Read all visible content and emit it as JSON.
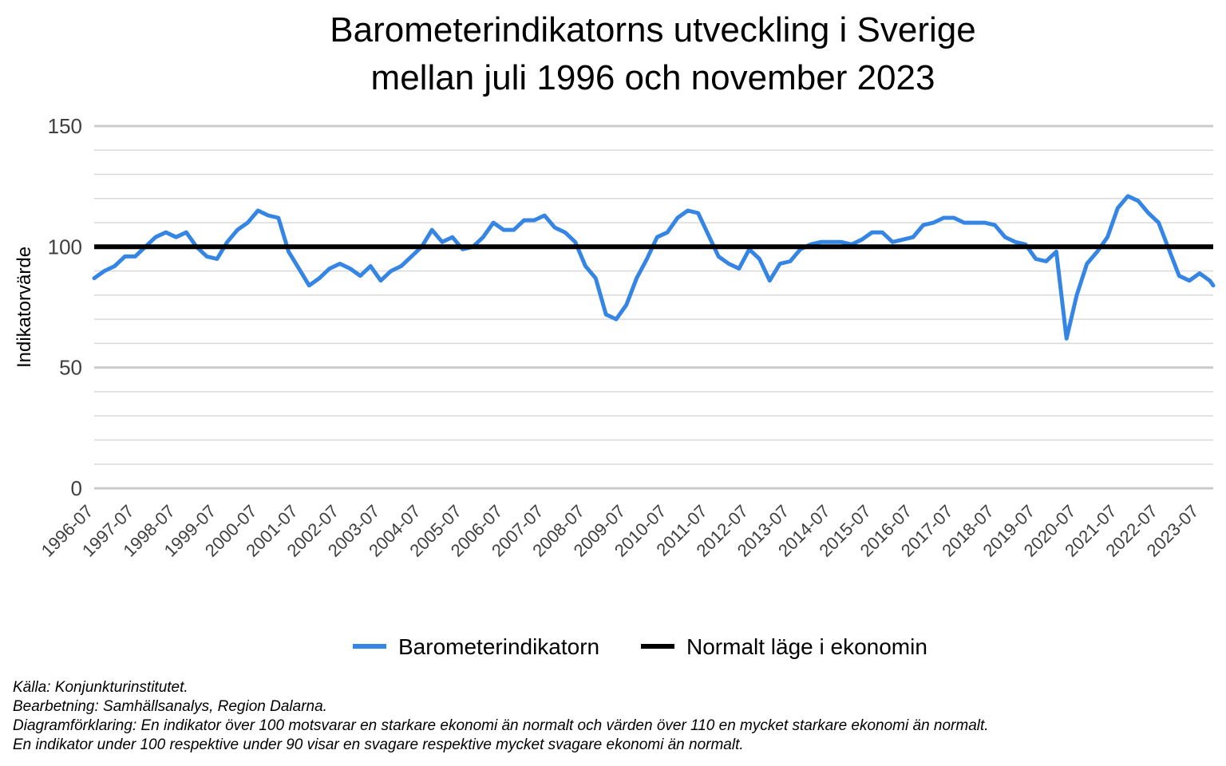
{
  "chart_data": {
    "type": "line",
    "title": [
      "Barometerindikatorns utveckling i Sverige",
      "mellan juli 1996 och november 2023"
    ],
    "ylabel": "Indikatorvärde",
    "xlabel": "",
    "ylim": [
      0,
      150
    ],
    "yticks": [
      0,
      50,
      100,
      150
    ],
    "grid": true,
    "legend_position": "bottom",
    "x_tick_labels": [
      "1996-07",
      "1997-07",
      "1998-07",
      "1999-07",
      "2000-07",
      "2001-07",
      "2002-07",
      "2003-07",
      "2004-07",
      "2005-07",
      "2006-07",
      "2007-07",
      "2008-07",
      "2009-07",
      "2010-07",
      "2011-07",
      "2012-07",
      "2013-07",
      "2014-07",
      "2015-07",
      "2016-07",
      "2017-07",
      "2018-07",
      "2019-07",
      "2020-07",
      "2021-07",
      "2022-07",
      "2023-07"
    ],
    "x_start": "1996-07",
    "x_end": "2023-11",
    "series": [
      {
        "name": "Barometerindikatorn",
        "color": "#3585e5",
        "points": [
          [
            "1996-07",
            87
          ],
          [
            "1996-10",
            90
          ],
          [
            "1997-01",
            92
          ],
          [
            "1997-04",
            96
          ],
          [
            "1997-07",
            96
          ],
          [
            "1997-10",
            100
          ],
          [
            "1998-01",
            104
          ],
          [
            "1998-04",
            106
          ],
          [
            "1998-07",
            104
          ],
          [
            "1998-10",
            106
          ],
          [
            "1999-01",
            100
          ],
          [
            "1999-04",
            96
          ],
          [
            "1999-07",
            95
          ],
          [
            "1999-10",
            102
          ],
          [
            "2000-01",
            107
          ],
          [
            "2000-04",
            110
          ],
          [
            "2000-07",
            115
          ],
          [
            "2000-10",
            113
          ],
          [
            "2001-01",
            112
          ],
          [
            "2001-04",
            98
          ],
          [
            "2001-07",
            91
          ],
          [
            "2001-10",
            84
          ],
          [
            "2002-01",
            87
          ],
          [
            "2002-04",
            91
          ],
          [
            "2002-07",
            93
          ],
          [
            "2002-10",
            91
          ],
          [
            "2003-01",
            88
          ],
          [
            "2003-04",
            92
          ],
          [
            "2003-07",
            86
          ],
          [
            "2003-10",
            90
          ],
          [
            "2004-01",
            92
          ],
          [
            "2004-04",
            96
          ],
          [
            "2004-07",
            100
          ],
          [
            "2004-10",
            107
          ],
          [
            "2005-01",
            102
          ],
          [
            "2005-04",
            104
          ],
          [
            "2005-07",
            99
          ],
          [
            "2005-10",
            100
          ],
          [
            "2006-01",
            104
          ],
          [
            "2006-04",
            110
          ],
          [
            "2006-07",
            107
          ],
          [
            "2006-10",
            107
          ],
          [
            "2007-01",
            111
          ],
          [
            "2007-04",
            111
          ],
          [
            "2007-07",
            113
          ],
          [
            "2007-10",
            108
          ],
          [
            "2008-01",
            106
          ],
          [
            "2008-04",
            102
          ],
          [
            "2008-07",
            92
          ],
          [
            "2008-10",
            87
          ],
          [
            "2009-01",
            72
          ],
          [
            "2009-04",
            70
          ],
          [
            "2009-07",
            76
          ],
          [
            "2009-10",
            87
          ],
          [
            "2010-01",
            95
          ],
          [
            "2010-04",
            104
          ],
          [
            "2010-07",
            106
          ],
          [
            "2010-10",
            112
          ],
          [
            "2011-01",
            115
          ],
          [
            "2011-04",
            114
          ],
          [
            "2011-07",
            105
          ],
          [
            "2011-10",
            96
          ],
          [
            "2012-01",
            93
          ],
          [
            "2012-04",
            91
          ],
          [
            "2012-07",
            99
          ],
          [
            "2012-10",
            95
          ],
          [
            "2013-01",
            86
          ],
          [
            "2013-04",
            93
          ],
          [
            "2013-07",
            94
          ],
          [
            "2013-10",
            99
          ],
          [
            "2014-01",
            101
          ],
          [
            "2014-04",
            102
          ],
          [
            "2014-07",
            102
          ],
          [
            "2014-10",
            102
          ],
          [
            "2015-01",
            101
          ],
          [
            "2015-04",
            103
          ],
          [
            "2015-07",
            106
          ],
          [
            "2015-10",
            106
          ],
          [
            "2016-01",
            102
          ],
          [
            "2016-04",
            103
          ],
          [
            "2016-07",
            104
          ],
          [
            "2016-10",
            109
          ],
          [
            "2017-01",
            110
          ],
          [
            "2017-04",
            112
          ],
          [
            "2017-07",
            112
          ],
          [
            "2017-10",
            110
          ],
          [
            "2018-01",
            110
          ],
          [
            "2018-04",
            110
          ],
          [
            "2018-07",
            109
          ],
          [
            "2018-10",
            104
          ],
          [
            "2019-01",
            102
          ],
          [
            "2019-04",
            101
          ],
          [
            "2019-07",
            95
          ],
          [
            "2019-10",
            94
          ],
          [
            "2020-01",
            98
          ],
          [
            "2020-04",
            62
          ],
          [
            "2020-07",
            80
          ],
          [
            "2020-10",
            93
          ],
          [
            "2021-01",
            98
          ],
          [
            "2021-04",
            104
          ],
          [
            "2021-07",
            116
          ],
          [
            "2021-10",
            121
          ],
          [
            "2022-01",
            119
          ],
          [
            "2022-04",
            114
          ],
          [
            "2022-07",
            110
          ],
          [
            "2022-10",
            99
          ],
          [
            "2023-01",
            88
          ],
          [
            "2023-04",
            86
          ],
          [
            "2023-07",
            89
          ],
          [
            "2023-10",
            86
          ],
          [
            "2023-11",
            84
          ]
        ]
      },
      {
        "name": "Normalt läge i ekonomin",
        "color": "#000000",
        "points": [
          [
            "1996-07",
            100
          ],
          [
            "2023-11",
            100
          ]
        ]
      }
    ]
  },
  "footer": {
    "source": "Källa: Konjunkturinstitutet.",
    "processing": "Bearbetning: Samhällsanalys, Region Dalarna.",
    "explanation_1": "Diagramförklaring: En indikator över 100 motsvarar en starkare ekonomi än normalt och värden över 110 en mycket starkare ekonomi än normalt.",
    "explanation_2": "En indikator under 100 respektive under 90 visar en svagare respektive mycket svagare ekonomi än normalt."
  }
}
